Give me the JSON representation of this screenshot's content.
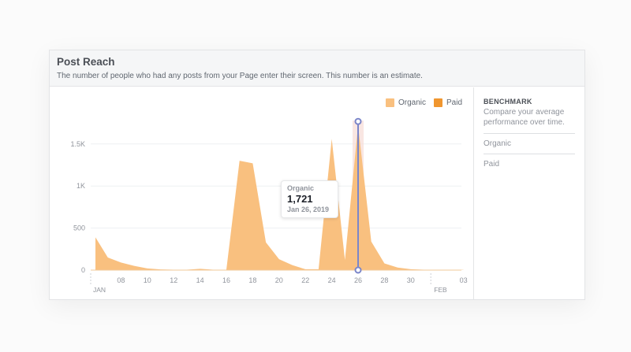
{
  "header": {
    "title": "Post Reach",
    "subtitle": "The number of people who had any posts from your Page enter their screen. This number is an estimate."
  },
  "legend": [
    {
      "label": "Organic",
      "color": "#f9c07f"
    },
    {
      "label": "Paid",
      "color": "#f0962f"
    }
  ],
  "benchmark": {
    "heading": "BENCHMARK",
    "description": "Compare your average performance over time.",
    "rows": [
      "Organic",
      "Paid"
    ]
  },
  "tooltip": {
    "series": "Organic",
    "value": "1,721",
    "date": "Jan 26, 2019"
  },
  "colors": {
    "organic": "#f9c07f",
    "paid": "#f0962f",
    "marker": "#7b86c9",
    "highlight": "#f6dcd6"
  },
  "chart_data": {
    "type": "area",
    "title": "Post Reach",
    "subtitle": "The number of people who had any posts from your Page enter their screen. This number is an estimate.",
    "xlabel": "",
    "ylabel": "",
    "y_ticks": [
      "0",
      "500",
      "1K",
      "1.5K"
    ],
    "ylim": [
      0,
      1750
    ],
    "x_ticks": [
      "08",
      "10",
      "12",
      "14",
      "16",
      "18",
      "20",
      "22",
      "24",
      "26",
      "28",
      "30",
      "03"
    ],
    "x_month_labels": [
      {
        "label": "JAN",
        "at": "Jan 06"
      },
      {
        "label": "FEB",
        "at": "Feb 01"
      }
    ],
    "grid": true,
    "legend_position": "top-right",
    "x": [
      "Jan 06",
      "Jan 07",
      "Jan 08",
      "Jan 09",
      "Jan 10",
      "Jan 11",
      "Jan 12",
      "Jan 13",
      "Jan 14",
      "Jan 15",
      "Jan 16",
      "Jan 17",
      "Jan 18",
      "Jan 19",
      "Jan 20",
      "Jan 21",
      "Jan 22",
      "Jan 23",
      "Jan 24",
      "Jan 25",
      "Jan 26",
      "Jan 27",
      "Jan 28",
      "Jan 29",
      "Jan 30",
      "Jan 31",
      "Feb 01",
      "Feb 02",
      "Feb 03"
    ],
    "series": [
      {
        "name": "Organic",
        "values": [
          390,
          150,
          90,
          50,
          20,
          8,
          5,
          5,
          15,
          5,
          5,
          1300,
          1270,
          330,
          130,
          60,
          10,
          10,
          1560,
          120,
          1721,
          340,
          80,
          30,
          10,
          5,
          5,
          3,
          2
        ]
      },
      {
        "name": "Paid",
        "values": [
          0,
          0,
          0,
          0,
          0,
          0,
          0,
          0,
          0,
          0,
          0,
          0,
          0,
          0,
          0,
          0,
          0,
          0,
          0,
          0,
          0,
          0,
          0,
          0,
          0,
          0,
          0,
          0,
          0
        ]
      }
    ],
    "highlighted_point": {
      "series": "Organic",
      "x": "Jan 26",
      "value": 1721
    }
  }
}
